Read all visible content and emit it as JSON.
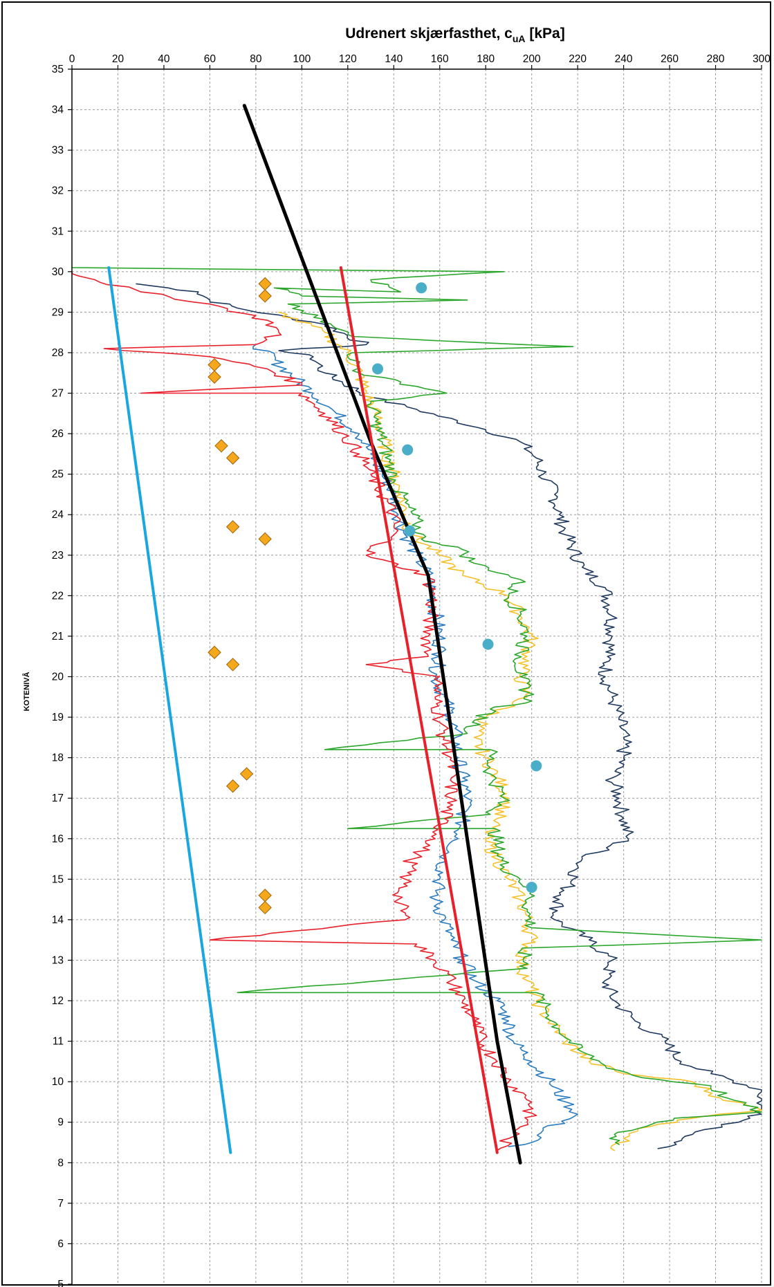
{
  "chart_data": {
    "type": "line",
    "title": "Udrenert skjærfasthet, c",
    "title_subscript": "uA",
    "title_unit": " [kPa]",
    "ylabel": "KOTENIVÅ",
    "xlabel": "",
    "xlim": [
      0,
      300
    ],
    "ylim": [
      5,
      35
    ],
    "x_axis_position": "top",
    "x_ticks": [
      0,
      20,
      40,
      60,
      80,
      100,
      120,
      140,
      160,
      180,
      200,
      220,
      240,
      260,
      280,
      300
    ],
    "y_ticks": [
      5,
      6,
      7,
      8,
      9,
      10,
      11,
      12,
      13,
      14,
      15,
      16,
      17,
      18,
      19,
      20,
      21,
      22,
      23,
      24,
      25,
      26,
      27,
      28,
      29,
      30,
      31,
      32,
      33,
      34,
      35
    ],
    "grid": true,
    "colors": {
      "navy": "#1f3a5f",
      "blue": "#2a7bc0",
      "yellow": "#f5c02a",
      "green": "#2aa62a",
      "red": "#e8202a",
      "black": "#000000",
      "cyan": "#1aa7e0",
      "diamond": "#f5a81c",
      "circle": "#4aaec8"
    },
    "series": [
      {
        "color": "navy",
        "kind": "cpt",
        "points": [
          [
            28,
            29.7
          ],
          [
            55,
            29.5
          ],
          [
            60,
            29.3
          ],
          [
            72,
            29.1
          ],
          [
            110,
            28.7
          ],
          [
            128,
            28.2
          ],
          [
            90,
            28.05
          ],
          [
            105,
            27.9
          ],
          [
            110,
            27.5
          ],
          [
            130,
            26.9
          ],
          [
            150,
            26.6
          ],
          [
            180,
            26.1
          ],
          [
            195,
            25.8
          ],
          [
            202,
            25.4
          ],
          [
            205,
            25.0
          ],
          [
            210,
            24.5
          ],
          [
            212,
            24.0
          ],
          [
            215,
            23.5
          ],
          [
            222,
            22.7
          ],
          [
            232,
            22.2
          ],
          [
            235,
            21.5
          ],
          [
            235,
            21.0
          ],
          [
            233,
            20.5
          ],
          [
            232,
            20.0
          ],
          [
            235,
            19.5
          ],
          [
            238,
            19.0
          ],
          [
            240,
            18.5
          ],
          [
            240,
            18.0
          ],
          [
            235,
            17.5
          ],
          [
            238,
            17.0
          ],
          [
            240,
            16.5
          ],
          [
            242,
            16.0
          ],
          [
            222,
            15.5
          ],
          [
            218,
            15.0
          ],
          [
            212,
            14.5
          ],
          [
            210,
            14.0
          ],
          [
            225,
            13.5
          ],
          [
            235,
            13.0
          ],
          [
            232,
            12.5
          ],
          [
            236,
            12.0
          ],
          [
            245,
            11.5
          ],
          [
            258,
            11.0
          ],
          [
            265,
            10.5
          ],
          [
            278,
            10.2
          ],
          [
            300,
            9.8
          ],
          [
            300,
            9.2
          ],
          [
            290,
            9.0
          ],
          [
            270,
            8.7
          ],
          [
            262,
            8.5
          ],
          [
            255,
            8.35
          ]
        ]
      },
      {
        "color": "blue",
        "kind": "cpt",
        "points": [
          [
            80,
            28.2
          ],
          [
            105,
            27.0
          ],
          [
            115,
            26.5
          ],
          [
            125,
            26.0
          ],
          [
            130,
            25.5
          ],
          [
            135,
            25.0
          ],
          [
            140,
            24.5
          ],
          [
            142,
            24.0
          ],
          [
            145,
            23.5
          ],
          [
            150,
            23.0
          ],
          [
            155,
            22.5
          ],
          [
            157,
            22.0
          ],
          [
            160,
            21.0
          ],
          [
            160,
            20.5
          ],
          [
            158,
            20.0
          ],
          [
            162,
            19.5
          ],
          [
            165,
            19.0
          ],
          [
            167,
            18.5
          ],
          [
            168,
            18.0
          ],
          [
            170,
            17.5
          ],
          [
            172,
            17.0
          ],
          [
            170,
            16.5
          ],
          [
            168,
            16.0
          ],
          [
            162,
            15.5
          ],
          [
            160,
            15.0
          ],
          [
            158,
            14.5
          ],
          [
            162,
            14.0
          ],
          [
            165,
            13.5
          ],
          [
            170,
            13.0
          ],
          [
            175,
            12.5
          ],
          [
            185,
            12.0
          ],
          [
            190,
            11.5
          ],
          [
            192,
            11.0
          ],
          [
            200,
            10.5
          ],
          [
            208,
            10.0
          ],
          [
            215,
            9.5
          ],
          [
            220,
            9.2
          ],
          [
            205,
            8.8
          ],
          [
            200,
            8.5
          ],
          [
            190,
            8.4
          ]
        ]
      },
      {
        "color": "yellow",
        "kind": "cpt",
        "points": [
          [
            90,
            29.0
          ],
          [
            110,
            28.5
          ],
          [
            120,
            28.0
          ],
          [
            125,
            27.5
          ],
          [
            128,
            27.0
          ],
          [
            132,
            26.5
          ],
          [
            135,
            26.0
          ],
          [
            137,
            25.5
          ],
          [
            140,
            25.0
          ],
          [
            143,
            24.5
          ],
          [
            145,
            24.0
          ],
          [
            148,
            23.5
          ],
          [
            160,
            23.0
          ],
          [
            170,
            22.5
          ],
          [
            190,
            22.0
          ],
          [
            195,
            21.5
          ],
          [
            200,
            21.0
          ],
          [
            198,
            20.5
          ],
          [
            195,
            20.0
          ],
          [
            198,
            19.5
          ],
          [
            180,
            19.0
          ],
          [
            175,
            18.5
          ],
          [
            180,
            18.0
          ],
          [
            185,
            17.5
          ],
          [
            190,
            17.0
          ],
          [
            185,
            16.5
          ],
          [
            180,
            16.0
          ],
          [
            185,
            15.5
          ],
          [
            190,
            15.0
          ],
          [
            195,
            14.5
          ],
          [
            198,
            14.0
          ],
          [
            200,
            13.5
          ],
          [
            195,
            13.0
          ],
          [
            198,
            12.5
          ],
          [
            202,
            12.0
          ],
          [
            208,
            11.5
          ],
          [
            215,
            11.0
          ],
          [
            225,
            10.5
          ],
          [
            240,
            10.2
          ],
          [
            270,
            10.0
          ],
          [
            282,
            9.6
          ],
          [
            300,
            9.3
          ],
          [
            270,
            9.1
          ],
          [
            252,
            8.9
          ],
          [
            240,
            8.6
          ],
          [
            236,
            8.3
          ]
        ]
      },
      {
        "color": "green",
        "kind": "cpt",
        "points": [
          [
            0,
            30.1
          ],
          [
            188,
            30.0
          ],
          [
            130,
            29.8
          ],
          [
            143,
            29.5
          ],
          [
            88,
            29.6
          ],
          [
            100,
            29.4
          ],
          [
            172,
            29.3
          ],
          [
            94,
            29.2
          ],
          [
            115,
            28.6
          ],
          [
            122,
            28.4
          ],
          [
            218,
            28.15
          ],
          [
            122,
            28.0
          ],
          [
            125,
            27.5
          ],
          [
            163,
            27.0
          ],
          [
            130,
            26.8
          ],
          [
            132,
            26.3
          ],
          [
            135,
            25.8
          ],
          [
            138,
            25.3
          ],
          [
            140,
            24.8
          ],
          [
            145,
            24.3
          ],
          [
            150,
            23.8
          ],
          [
            152,
            23.4
          ],
          [
            168,
            23.2
          ],
          [
            175,
            22.8
          ],
          [
            195,
            22.4
          ],
          [
            190,
            22.0
          ],
          [
            195,
            21.6
          ],
          [
            198,
            21.0
          ],
          [
            195,
            20.6
          ],
          [
            195,
            20.0
          ],
          [
            200,
            19.4
          ],
          [
            182,
            19.2
          ],
          [
            172,
            18.6
          ],
          [
            110,
            18.2
          ],
          [
            182,
            18.2
          ],
          [
            182,
            17.6
          ],
          [
            188,
            17.0
          ],
          [
            182,
            16.6
          ],
          [
            120,
            16.25
          ],
          [
            184,
            16.25
          ],
          [
            185,
            15.8
          ],
          [
            188,
            15.3
          ],
          [
            195,
            15.0
          ],
          [
            200,
            14.7
          ],
          [
            198,
            14.2
          ],
          [
            200,
            13.8
          ],
          [
            300,
            13.5
          ],
          [
            196,
            13.3
          ],
          [
            198,
            12.8
          ],
          [
            72,
            12.2
          ],
          [
            202,
            12.2
          ],
          [
            206,
            11.8
          ],
          [
            212,
            11.3
          ],
          [
            220,
            10.8
          ],
          [
            232,
            10.4
          ],
          [
            248,
            10.1
          ],
          [
            278,
            9.9
          ],
          [
            285,
            9.6
          ],
          [
            300,
            9.25
          ],
          [
            262,
            9.1
          ],
          [
            250,
            8.9
          ],
          [
            236,
            8.7
          ],
          [
            238,
            8.45
          ]
        ]
      },
      {
        "color": "red",
        "kind": "cpt",
        "points": [
          [
            0,
            30.0
          ],
          [
            10,
            29.8
          ],
          [
            30,
            29.5
          ],
          [
            60,
            29.2
          ],
          [
            85,
            28.8
          ],
          [
            90,
            28.5
          ],
          [
            80,
            28.2
          ],
          [
            14,
            28.1
          ],
          [
            60,
            27.9
          ],
          [
            85,
            27.6
          ],
          [
            100,
            27.2
          ],
          [
            30,
            27.0
          ],
          [
            100,
            27.0
          ],
          [
            110,
            26.5
          ],
          [
            118,
            26.0
          ],
          [
            125,
            25.5
          ],
          [
            130,
            25.0
          ],
          [
            135,
            24.5
          ],
          [
            140,
            24.0
          ],
          [
            140,
            23.5
          ],
          [
            128,
            23.0
          ],
          [
            155,
            22.5
          ],
          [
            157,
            22.0
          ],
          [
            155,
            21.0
          ],
          [
            155,
            20.5
          ],
          [
            128,
            20.3
          ],
          [
            160,
            20.0
          ],
          [
            158,
            19.5
          ],
          [
            160,
            19.0
          ],
          [
            162,
            18.5
          ],
          [
            165,
            18.0
          ],
          [
            165,
            17.5
          ],
          [
            165,
            17.0
          ],
          [
            162,
            16.5
          ],
          [
            158,
            16.0
          ],
          [
            148,
            15.5
          ],
          [
            145,
            15.0
          ],
          [
            142,
            14.5
          ],
          [
            145,
            14.0
          ],
          [
            60,
            13.5
          ],
          [
            150,
            13.4
          ],
          [
            158,
            13.0
          ],
          [
            165,
            12.5
          ],
          [
            170,
            12.0
          ],
          [
            175,
            11.5
          ],
          [
            178,
            11.0
          ],
          [
            185,
            10.5
          ],
          [
            190,
            10.0
          ],
          [
            200,
            9.5
          ],
          [
            198,
            9.0
          ],
          [
            190,
            8.6
          ],
          [
            185,
            8.3
          ]
        ]
      },
      {
        "color": "black",
        "kind": "trend",
        "width": 5,
        "points": [
          [
            75,
            34.1
          ],
          [
            130,
            25.8
          ],
          [
            155,
            22.5
          ],
          [
            185,
            11.0
          ],
          [
            195,
            8.0
          ]
        ]
      },
      {
        "color": "red",
        "kind": "trend",
        "width": 4,
        "points": [
          [
            117,
            30.1
          ],
          [
            185,
            8.25
          ]
        ]
      },
      {
        "color": "cyan",
        "kind": "trend",
        "width": 4,
        "points": [
          [
            16,
            30.1
          ],
          [
            69,
            8.25
          ]
        ]
      }
    ],
    "diamonds": [
      [
        84,
        29.7
      ],
      [
        84,
        29.4
      ],
      [
        62,
        27.7
      ],
      [
        62,
        27.4
      ],
      [
        65,
        25.7
      ],
      [
        70,
        25.4
      ],
      [
        70,
        23.7
      ],
      [
        84,
        23.4
      ],
      [
        62,
        20.6
      ],
      [
        70,
        20.3
      ],
      [
        76,
        17.6
      ],
      [
        70,
        17.3
      ],
      [
        84,
        14.6
      ],
      [
        84,
        14.3
      ]
    ],
    "circles": [
      [
        152,
        29.6
      ],
      [
        133,
        27.6
      ],
      [
        146,
        25.6
      ],
      [
        147,
        23.6
      ],
      [
        181,
        20.8
      ],
      [
        202,
        17.8
      ],
      [
        200,
        14.8
      ]
    ]
  }
}
